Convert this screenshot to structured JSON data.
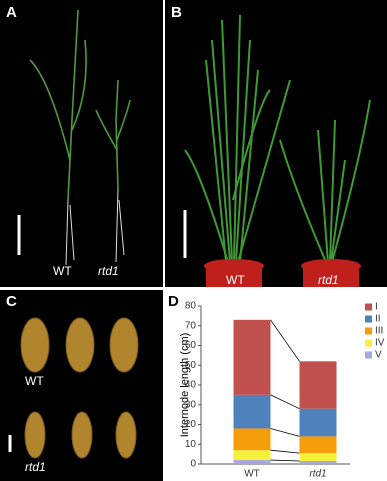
{
  "panels": [
    {
      "label": "A",
      "captions": [
        "WT",
        "rtd1"
      ]
    },
    {
      "label": "B",
      "captions": [
        "WT",
        "rtd1"
      ]
    },
    {
      "label": "C",
      "captions": [
        "WT",
        "rtd1"
      ]
    }
  ],
  "chart_data": {
    "label": "D",
    "type": "stacked_bar",
    "y_label": "Internode length (cm)",
    "categories": [
      "WT",
      "rtd1"
    ],
    "series": [
      {
        "name": "I",
        "color": "#c0504d",
        "values": [
          38,
          24
        ]
      },
      {
        "name": "II",
        "color": "#4f81bd",
        "values": [
          17,
          14
        ]
      },
      {
        "name": "III",
        "color": "#f59d0b",
        "values": [
          11,
          8.5
        ]
      },
      {
        "name": "IV",
        "color": "#f5f03a",
        "values": [
          5,
          4
        ]
      },
      {
        "name": "V",
        "color": "#a6a6e0",
        "values": [
          2,
          1.5
        ]
      }
    ],
    "ylim": [
      0,
      80
    ],
    "yticks": [
      0,
      10,
      20,
      30,
      40,
      50,
      60,
      70,
      80
    ],
    "legend": "upper right"
  }
}
